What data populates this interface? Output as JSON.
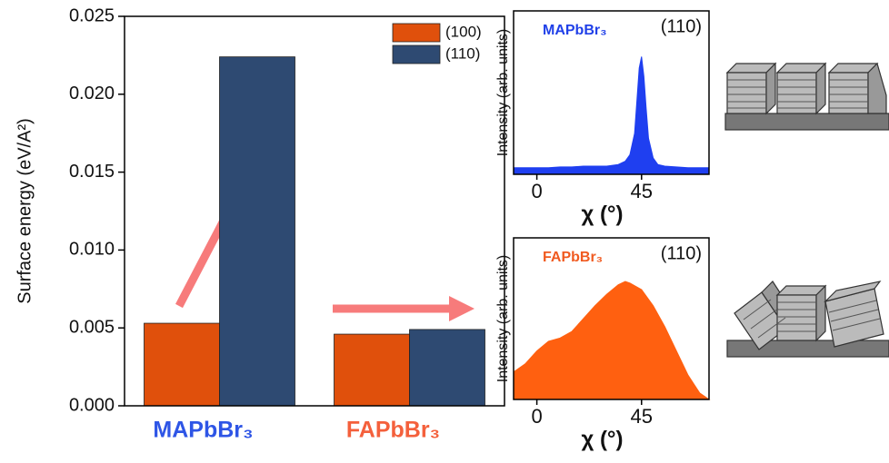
{
  "chart_data": [
    {
      "type": "bar",
      "ylabel": "Surface energy (eV/A²)",
      "categories": [
        "MAPbBr₃",
        "FAPbBr₃"
      ],
      "category_colors": [
        "#2e55e6",
        "#f4603c"
      ],
      "series": [
        {
          "name": "(100)",
          "color": "#e0500c",
          "values": [
            0.0053,
            0.0046
          ]
        },
        {
          "name": "(110)",
          "color": "#2e4a72",
          "values": [
            0.0224,
            0.0049
          ]
        }
      ],
      "ylim": [
        0,
        0.025
      ],
      "yticks": [
        {
          "value": 0,
          "label": "0.000"
        },
        {
          "value": 0.005,
          "label": "0.005"
        },
        {
          "value": 0.01,
          "label": "0.010"
        },
        {
          "value": 0.015,
          "label": "0.015"
        },
        {
          "value": 0.02,
          "label": "0.020"
        },
        {
          "value": 0.025,
          "label": "0.025"
        }
      ],
      "legend": "upper right"
    },
    {
      "type": "area",
      "label": "MAPbBr₃",
      "label_color": "#2040e8",
      "annotation": "(110)",
      "xlabel": "χ (°)",
      "ylabel": "Intensity (arb. units)",
      "x": [
        -10,
        -5,
        0,
        5,
        10,
        15,
        20,
        25,
        30,
        35,
        38,
        40,
        42,
        43,
        44,
        45,
        46,
        47,
        48,
        50,
        52,
        55,
        60,
        65,
        70,
        74
      ],
      "series": [
        {
          "name": "MAPbBr₃",
          "color": "#1f3ff0",
          "values": [
            0.04,
            0.04,
            0.04,
            0.04,
            0.045,
            0.045,
            0.05,
            0.05,
            0.05,
            0.06,
            0.08,
            0.12,
            0.25,
            0.45,
            0.65,
            0.72,
            0.6,
            0.4,
            0.22,
            0.1,
            0.06,
            0.05,
            0.045,
            0.04,
            0.04,
            0.04
          ]
        }
      ],
      "xlim": [
        -10,
        74
      ],
      "ylim": [
        0,
        1
      ],
      "xticks": [
        0,
        45
      ]
    },
    {
      "type": "area",
      "label": "FAPbBr₃",
      "label_color": "#f05a20",
      "annotation": "(110)",
      "xlabel": "χ (°)",
      "ylabel": "Intensity (arb. units)",
      "x": [
        -10,
        -5,
        0,
        5,
        10,
        15,
        20,
        25,
        30,
        35,
        38,
        40,
        45,
        50,
        55,
        60,
        65,
        70,
        74
      ],
      "series": [
        {
          "name": "FAPbBr₃",
          "color": "#ff6010",
          "values": [
            0.17,
            0.22,
            0.3,
            0.36,
            0.38,
            0.42,
            0.5,
            0.58,
            0.65,
            0.71,
            0.73,
            0.72,
            0.68,
            0.58,
            0.45,
            0.3,
            0.15,
            0.04,
            0.0
          ]
        }
      ],
      "xlim": [
        -10,
        74
      ],
      "ylim": [
        0,
        1
      ],
      "xticks": [
        0,
        45
      ]
    }
  ]
}
